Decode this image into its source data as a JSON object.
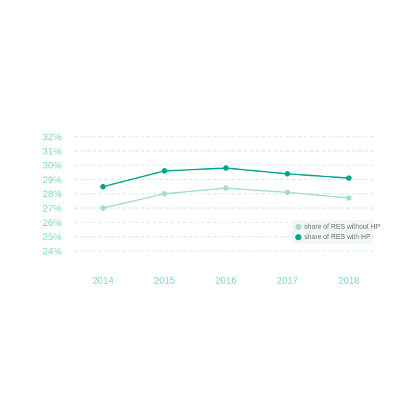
{
  "chart_data": {
    "type": "line",
    "title": "",
    "xlabel": "",
    "ylabel": "",
    "categories": [
      "2014",
      "2015",
      "2016",
      "2017",
      "2018"
    ],
    "series": [
      {
        "name": "share of RES without HP",
        "values": [
          27.0,
          28.0,
          28.4,
          28.1,
          27.7
        ],
        "color": "#a8dccf"
      },
      {
        "name": "share of RES with HP",
        "values": [
          28.5,
          29.6,
          29.8,
          29.4,
          29.1
        ],
        "color": "#00a78d"
      }
    ],
    "ylim": [
      24,
      32
    ],
    "y_tick_values": [
      32,
      31,
      30,
      29,
      28,
      27,
      26,
      25,
      24
    ],
    "y_tick_labels": [
      "32%",
      "31%",
      "30%",
      "29%",
      "28%",
      "27%",
      "26%",
      "25%",
      "24%"
    ],
    "grid": "horizontal-dashed",
    "legend_position": "inside-bottom-right",
    "marker": "circle"
  },
  "colors": {
    "series_without_hp": "#a8dccf",
    "series_with_hp": "#00a78d",
    "axis_label": "#7dd5c5",
    "gridline": "#d9f0e9",
    "legend_bg": "#f2f6f6",
    "legend_text": "#697376",
    "background": "#ffffff"
  }
}
